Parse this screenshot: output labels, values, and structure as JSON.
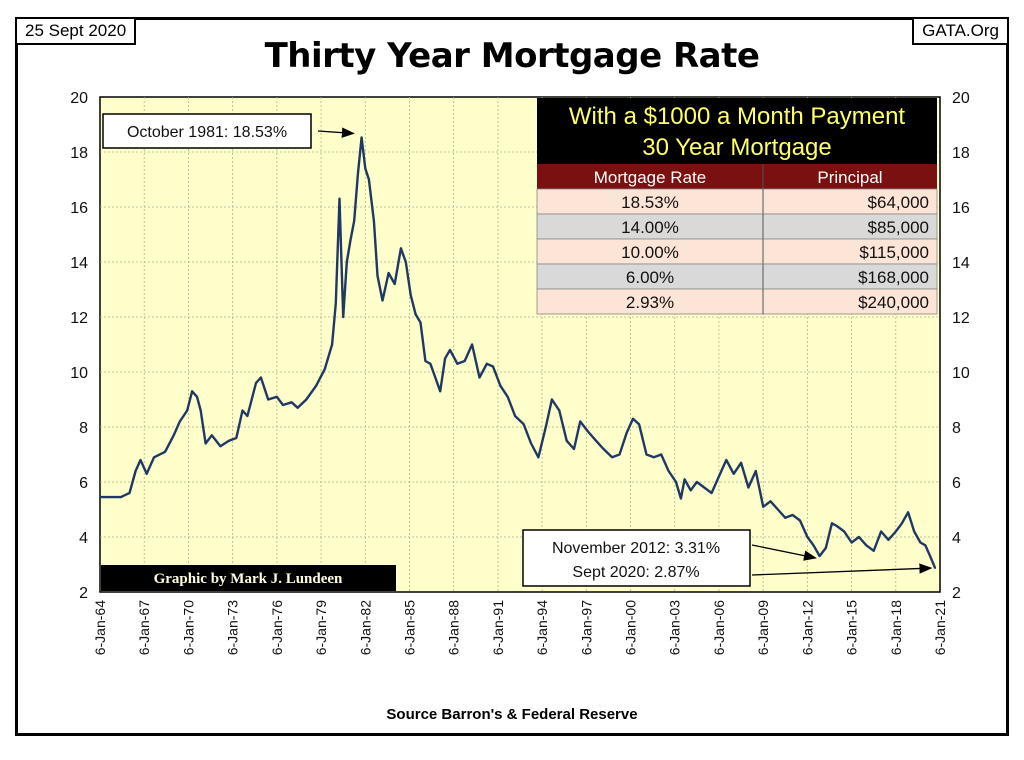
{
  "header": {
    "date": "25 Sept 2020",
    "site": "GATA.Org"
  },
  "source": "Source Barron's & Federal Reserve",
  "credit": "Graphic by Mark J. Lundeen",
  "colors": {
    "plot_bg": "#ffffcc",
    "line": "#1f3864",
    "table_header_bg": "#7a1010",
    "row_pink": "#fce4d6",
    "row_gray": "#d9d9d9"
  },
  "table": {
    "title_line1": "With a $1000 a Month Payment",
    "title_line2": "30 Year Mortgage",
    "columns": [
      "Mortgage Rate",
      "Principal"
    ],
    "rows": [
      [
        "18.53%",
        "$64,000"
      ],
      [
        "14.00%",
        "$85,000"
      ],
      [
        "10.00%",
        "$115,000"
      ],
      [
        "6.00%",
        "$168,000"
      ],
      [
        "2.93%",
        "$240,000"
      ]
    ]
  },
  "annotations": [
    {
      "text": "October 1981: 18.53%",
      "target": {
        "x": "1981-10",
        "y": 18.53
      }
    },
    {
      "text": "November 2012: 3.31%",
      "target": {
        "x": "2012-11",
        "y": 3.31
      }
    },
    {
      "text": "Sept 2020: 2.87%",
      "target": {
        "x": "2020-09",
        "y": 2.87
      }
    }
  ],
  "chart_data": {
    "type": "line",
    "title": "Thirty Year Mortgage Rate",
    "xlabel": "",
    "ylabel": "",
    "ylim": [
      2,
      20
    ],
    "yticks": [
      2,
      4,
      6,
      8,
      10,
      12,
      14,
      16,
      18,
      20
    ],
    "xlim": [
      "1964-01",
      "2021-01"
    ],
    "xticks": [
      "6-Jan-64",
      "6-Jan-67",
      "6-Jan-70",
      "6-Jan-73",
      "6-Jan-76",
      "6-Jan-79",
      "6-Jan-82",
      "6-Jan-85",
      "6-Jan-88",
      "6-Jan-91",
      "6-Jan-94",
      "6-Jan-97",
      "6-Jan-00",
      "6-Jan-03",
      "6-Jan-06",
      "6-Jan-09",
      "6-Jan-12",
      "6-Jan-15",
      "6-Jan-18",
      "6-Jan-21"
    ],
    "grid": true,
    "series": [
      {
        "x": [
          "1964-01",
          "1965-06",
          "1966-01",
          "1966-06",
          "1966-10",
          "1967-03",
          "1967-09",
          "1968-06",
          "1969-01",
          "1969-06",
          "1969-12",
          "1970-04",
          "1970-08",
          "1970-11",
          "1971-03",
          "1971-08",
          "1972-03",
          "1972-10",
          "1973-04",
          "1973-09",
          "1974-01",
          "1974-08",
          "1974-12",
          "1975-06",
          "1976-01",
          "1976-06",
          "1977-01",
          "1977-06",
          "1978-01",
          "1978-09",
          "1979-04",
          "1979-10",
          "1980-01",
          "1980-04",
          "1980-07",
          "1980-10",
          "1981-01",
          "1981-04",
          "1981-07",
          "1981-10",
          "1982-01",
          "1982-04",
          "1982-08",
          "1982-11",
          "1983-03",
          "1983-08",
          "1984-01",
          "1984-06",
          "1984-10",
          "1985-02",
          "1985-06",
          "1985-10",
          "1986-02",
          "1986-06",
          "1986-10",
          "1987-02",
          "1987-06",
          "1987-10",
          "1988-04",
          "1988-10",
          "1989-04",
          "1989-10",
          "1990-04",
          "1990-09",
          "1991-03",
          "1991-09",
          "1992-03",
          "1992-10",
          "1993-04",
          "1993-10",
          "1994-04",
          "1994-09",
          "1995-03",
          "1995-09",
          "1996-03",
          "1996-08",
          "1997-03",
          "1997-09",
          "1998-03",
          "1998-10",
          "1999-04",
          "1999-10",
          "2000-03",
          "2000-08",
          "2001-02",
          "2001-08",
          "2002-02",
          "2002-08",
          "2003-02",
          "2003-06",
          "2003-09",
          "2004-02",
          "2004-07",
          "2005-01",
          "2005-07",
          "2006-01",
          "2006-07",
          "2007-01",
          "2007-07",
          "2008-01",
          "2008-07",
          "2009-01",
          "2009-07",
          "2010-01",
          "2010-07",
          "2011-01",
          "2011-07",
          "2012-01",
          "2012-06",
          "2012-11",
          "2013-04",
          "2013-09",
          "2014-01",
          "2014-07",
          "2015-01",
          "2015-07",
          "2016-01",
          "2016-07",
          "2017-01",
          "2017-07",
          "2018-01",
          "2018-06",
          "2018-11",
          "2019-04",
          "2019-09",
          "2020-01",
          "2020-05",
          "2020-09"
        ],
        "y": [
          5.45,
          5.45,
          5.6,
          6.4,
          6.8,
          6.3,
          6.9,
          7.1,
          7.7,
          8.2,
          8.6,
          9.3,
          9.1,
          8.6,
          7.4,
          7.7,
          7.3,
          7.5,
          7.6,
          8.6,
          8.4,
          9.6,
          9.8,
          9.0,
          9.1,
          8.8,
          8.9,
          8.7,
          9.0,
          9.5,
          10.1,
          11.0,
          12.5,
          16.3,
          12.0,
          14.0,
          14.8,
          15.5,
          17.2,
          18.53,
          17.4,
          17.0,
          15.5,
          13.5,
          12.6,
          13.6,
          13.2,
          14.5,
          14.0,
          12.8,
          12.1,
          11.8,
          10.4,
          10.3,
          9.8,
          9.3,
          10.5,
          10.8,
          10.3,
          10.4,
          11.0,
          9.8,
          10.3,
          10.2,
          9.5,
          9.1,
          8.4,
          8.1,
          7.4,
          6.9,
          8.0,
          9.0,
          8.6,
          7.5,
          7.2,
          8.2,
          7.8,
          7.5,
          7.2,
          6.9,
          7.0,
          7.8,
          8.3,
          8.1,
          7.0,
          6.9,
          7.0,
          6.4,
          6.0,
          5.4,
          6.1,
          5.7,
          6.0,
          5.8,
          5.6,
          6.2,
          6.8,
          6.3,
          6.7,
          5.8,
          6.4,
          5.1,
          5.3,
          5.0,
          4.7,
          4.8,
          4.6,
          4.0,
          3.7,
          3.31,
          3.6,
          4.5,
          4.4,
          4.2,
          3.8,
          4.0,
          3.7,
          3.5,
          4.2,
          3.9,
          4.2,
          4.5,
          4.9,
          4.2,
          3.8,
          3.7,
          3.3,
          2.87
        ]
      }
    ]
  }
}
